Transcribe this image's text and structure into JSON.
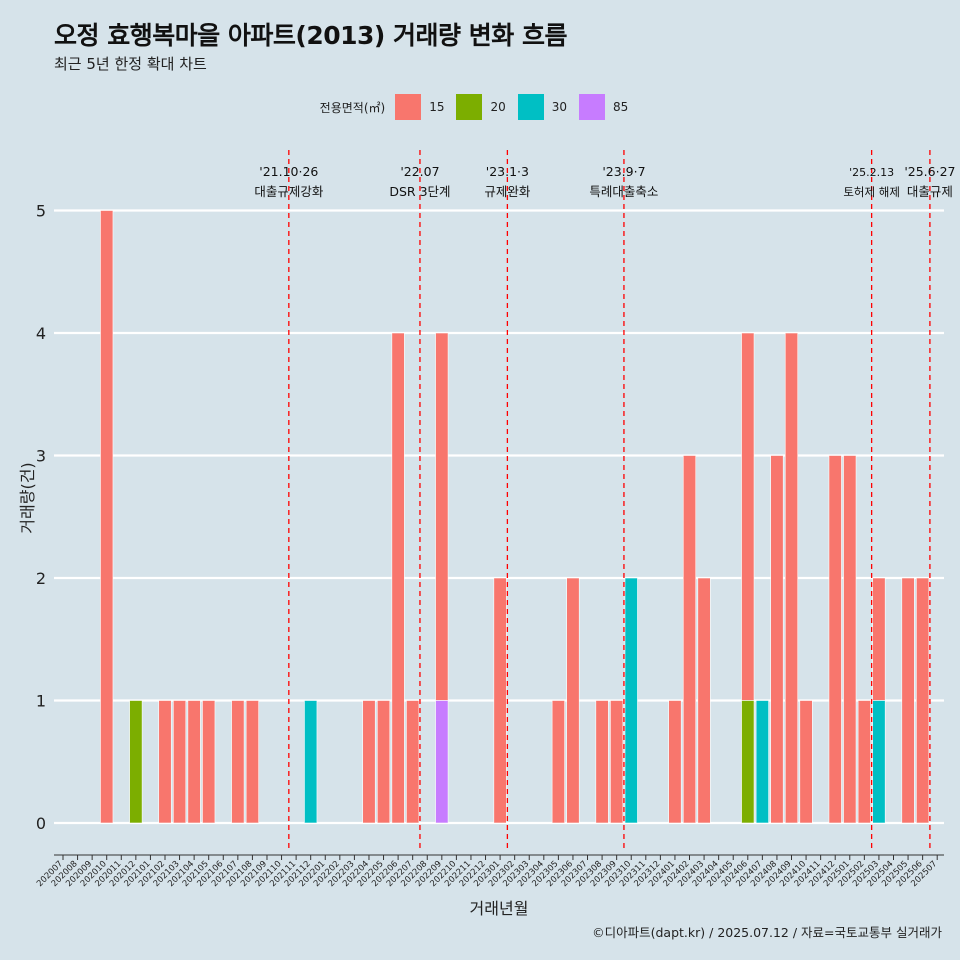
{
  "title": "오정 효행복마을 아파트(2013) 거래량 변화 흐름",
  "subtitle": "최근 5년 한정 확대 차트",
  "caption": "©디아파트(dapt.kr) / 2025.07.12 / 자료=국토교통부 실거래가",
  "legend": {
    "title": "전용면적(㎡)",
    "items": [
      {
        "label": "15",
        "color": "#f8766d"
      },
      {
        "label": "20",
        "color": "#7cae00"
      },
      {
        "label": "30",
        "color": "#00bfc4"
      },
      {
        "label": "85",
        "color": "#c77cff"
      }
    ]
  },
  "chart_data": {
    "type": "bar",
    "title": "오정 효행복마을 아파트(2013) 거래량 변화 흐름",
    "subtitle": "최근 5년 한정 확대 차트",
    "xlabel": "거래년월",
    "ylabel": "거래량(건)",
    "ylim": [
      0,
      5
    ],
    "yticks": [
      0,
      1,
      2,
      3,
      4,
      5
    ],
    "grid": true,
    "legend_position": "top",
    "categories": [
      "202007",
      "202008",
      "202009",
      "202010",
      "202011",
      "202012",
      "202101",
      "202102",
      "202103",
      "202104",
      "202105",
      "202106",
      "202107",
      "202108",
      "202109",
      "202110",
      "202111",
      "202112",
      "202201",
      "202202",
      "202203",
      "202204",
      "202205",
      "202206",
      "202207",
      "202208",
      "202209",
      "202210",
      "202211",
      "202212",
      "202301",
      "202302",
      "202303",
      "202304",
      "202305",
      "202306",
      "202307",
      "202308",
      "202309",
      "202310",
      "202311",
      "202312",
      "202401",
      "202402",
      "202403",
      "202404",
      "202405",
      "202406",
      "202407",
      "202408",
      "202409",
      "202410",
      "202411",
      "202412",
      "202501",
      "202502",
      "202503",
      "202504",
      "202505",
      "202506",
      "202507"
    ],
    "bars": [
      {
        "month": "202010",
        "area": "15",
        "value": 5
      },
      {
        "month": "202012",
        "area": "20",
        "value": 1
      },
      {
        "month": "202102",
        "area": "15",
        "value": 1
      },
      {
        "month": "202103",
        "area": "15",
        "value": 1
      },
      {
        "month": "202104",
        "area": "15",
        "value": 1
      },
      {
        "month": "202105",
        "area": "15",
        "value": 1
      },
      {
        "month": "202107",
        "area": "15",
        "value": 1
      },
      {
        "month": "202108",
        "area": "15",
        "value": 1
      },
      {
        "month": "202112",
        "area": "30",
        "value": 1
      },
      {
        "month": "202204",
        "area": "15",
        "value": 1
      },
      {
        "month": "202205",
        "area": "15",
        "value": 1
      },
      {
        "month": "202206",
        "area": "15",
        "value": 4
      },
      {
        "month": "202207",
        "area": "15",
        "value": 1
      },
      {
        "month": "202209",
        "area": "15",
        "value": 3
      },
      {
        "month": "202209",
        "area": "85",
        "value": 1
      },
      {
        "month": "202301",
        "area": "15",
        "value": 2
      },
      {
        "month": "202305",
        "area": "15",
        "value": 1
      },
      {
        "month": "202306",
        "area": "15",
        "value": 2
      },
      {
        "month": "202308",
        "area": "15",
        "value": 1
      },
      {
        "month": "202309",
        "area": "15",
        "value": 1
      },
      {
        "month": "202310",
        "area": "30",
        "value": 2
      },
      {
        "month": "202401",
        "area": "15",
        "value": 1
      },
      {
        "month": "202402",
        "area": "15",
        "value": 3
      },
      {
        "month": "202403",
        "area": "15",
        "value": 2
      },
      {
        "month": "202406",
        "area": "15",
        "value": 3
      },
      {
        "month": "202406",
        "area": "20",
        "value": 1
      },
      {
        "month": "202407",
        "area": "30",
        "value": 1
      },
      {
        "month": "202408",
        "area": "15",
        "value": 3
      },
      {
        "month": "202409",
        "area": "15",
        "value": 4
      },
      {
        "month": "202410",
        "area": "15",
        "value": 1
      },
      {
        "month": "202412",
        "area": "15",
        "value": 3
      },
      {
        "month": "202501",
        "area": "15",
        "value": 3
      },
      {
        "month": "202502",
        "area": "15",
        "value": 1
      },
      {
        "month": "202503",
        "area": "15",
        "value": 1
      },
      {
        "month": "202503",
        "area": "30",
        "value": 1
      },
      {
        "month": "202505",
        "area": "15",
        "value": 2
      },
      {
        "month": "202506",
        "area": "15",
        "value": 2
      }
    ],
    "events": [
      {
        "month": "202110",
        "date": "'21.10·26",
        "text": "대출규제강화"
      },
      {
        "month": "202207",
        "date": "'22.07",
        "text": "DSR 3단계"
      },
      {
        "month": "202301",
        "date": "'23.1·3",
        "text": "규제완화"
      },
      {
        "month": "202309",
        "date": "'23.9·7",
        "text": "특례대출축소"
      },
      {
        "month": "202502",
        "date": "'25.2.13",
        "text": "토허제 해제"
      },
      {
        "month": "202506",
        "date": "'25.6·27",
        "text": "대출규제"
      }
    ]
  }
}
